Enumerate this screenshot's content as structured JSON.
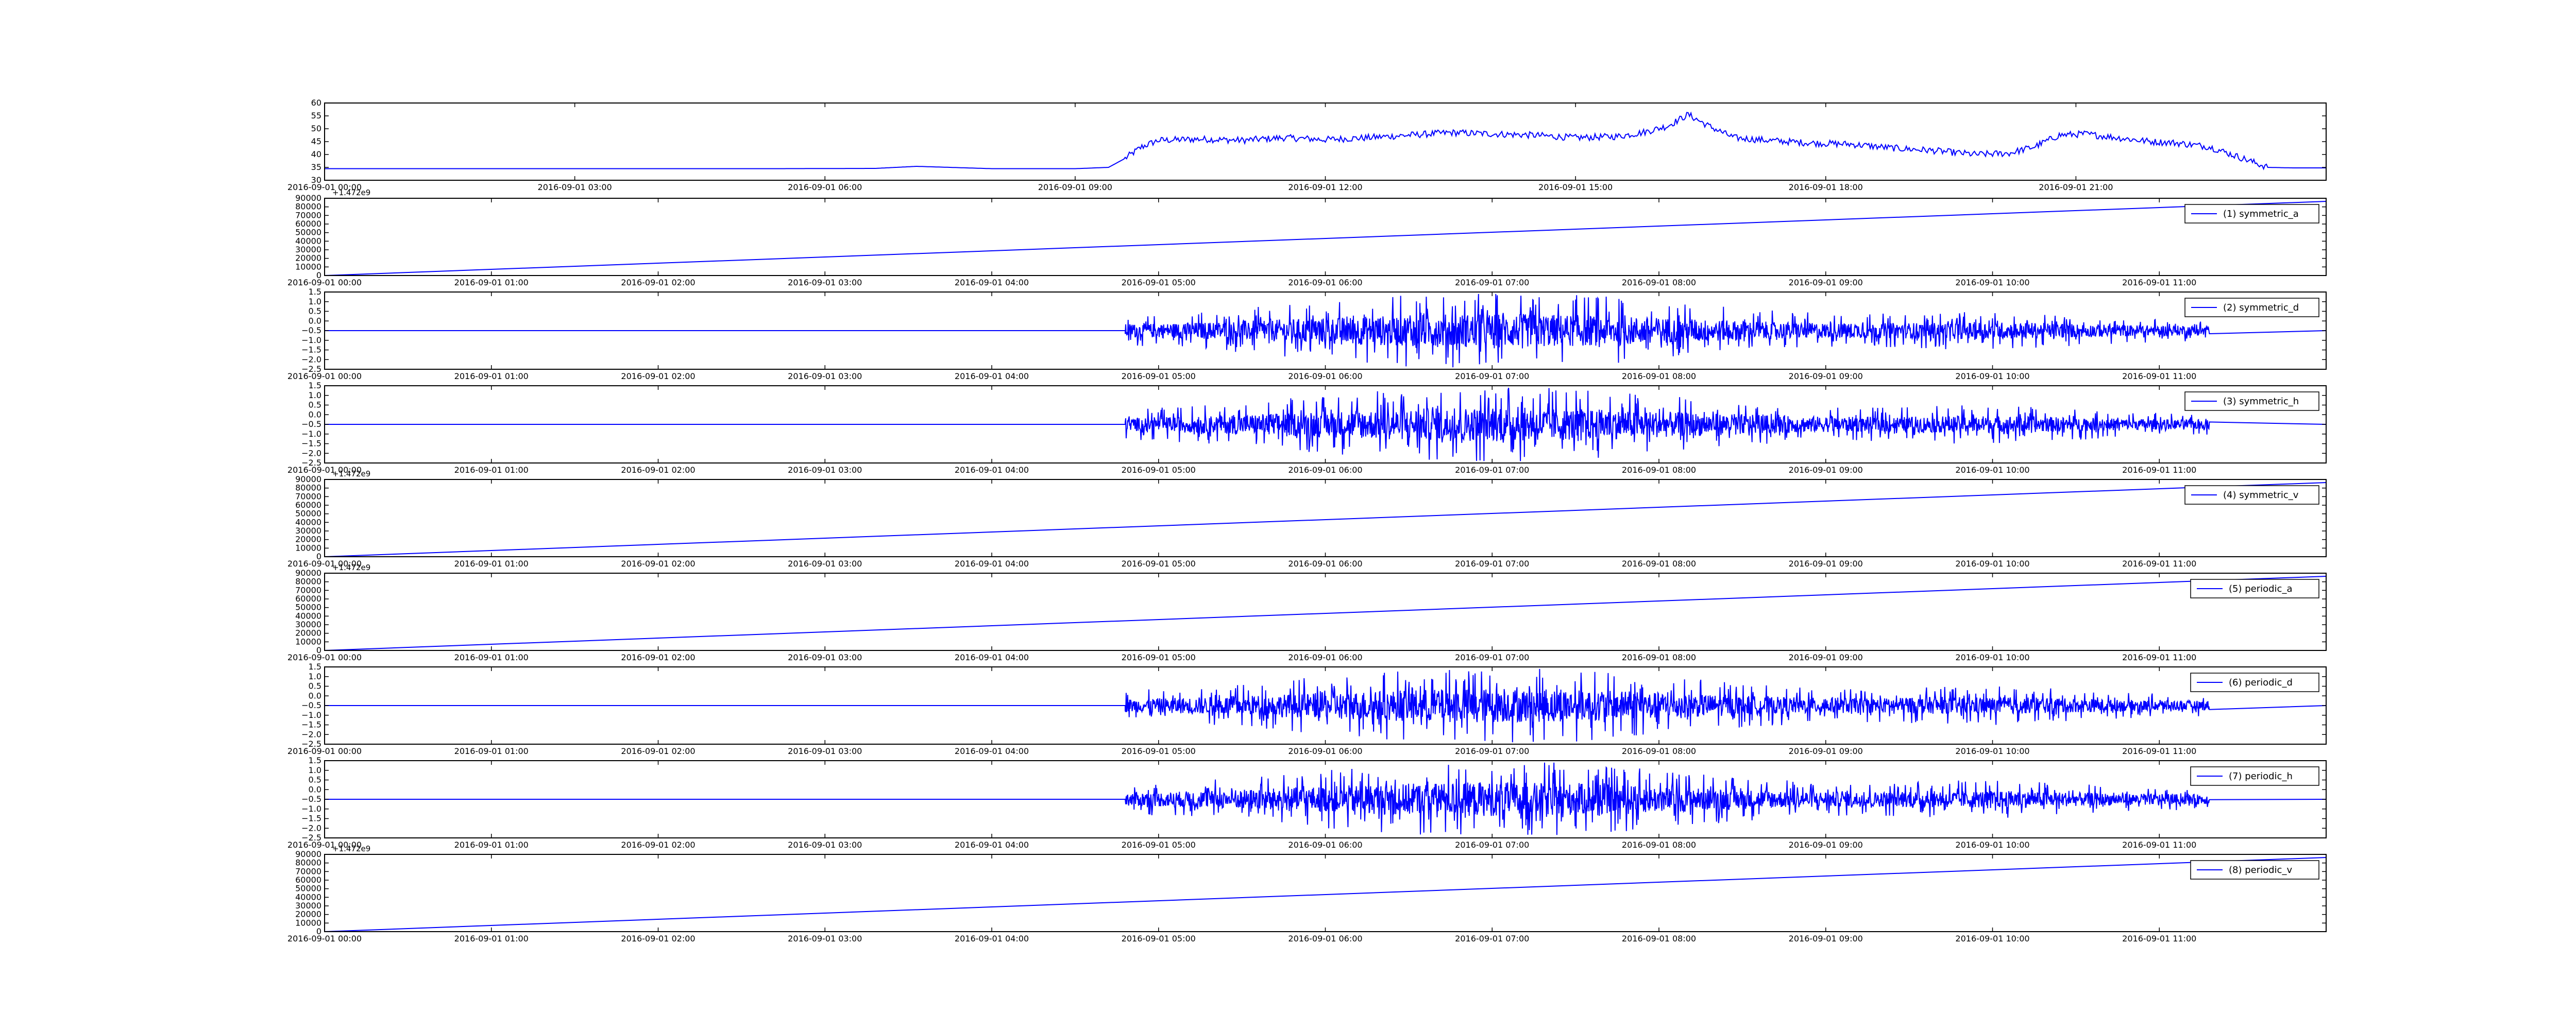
{
  "figure": {
    "line_color": "#0000ff",
    "axes_color": "#000000",
    "background": "#ffffff"
  },
  "chart_data": [
    {
      "type": "line",
      "series": [
        {
          "values": [
            [
              0.0,
              34.5
            ],
            [
              3.0,
              34.5
            ],
            [
              5.4,
              34.5
            ],
            [
              6.6,
              34.6
            ],
            [
              7.1,
              35.4
            ],
            [
              7.5,
              35.0
            ],
            [
              8.0,
              34.5
            ],
            [
              9.0,
              34.5
            ],
            [
              9.4,
              35.0
            ],
            [
              9.6,
              38.5
            ],
            [
              9.8,
              43.0
            ],
            [
              10.0,
              45.5
            ],
            [
              10.5,
              46.0
            ],
            [
              11.0,
              45.5
            ],
            [
              11.5,
              46.5
            ],
            [
              12.0,
              45.8
            ],
            [
              12.5,
              46.5
            ],
            [
              13.0,
              47.5
            ],
            [
              13.5,
              48.5
            ],
            [
              14.0,
              48.0
            ],
            [
              14.5,
              47.5
            ],
            [
              15.0,
              46.5
            ],
            [
              15.5,
              47.0
            ],
            [
              15.8,
              48.5
            ],
            [
              16.1,
              51.0
            ],
            [
              16.35,
              55.5
            ],
            [
              16.6,
              51.0
            ],
            [
              16.9,
              46.5
            ],
            [
              17.3,
              45.5
            ],
            [
              17.8,
              44.5
            ],
            [
              18.3,
              44.0
            ],
            [
              18.8,
              42.5
            ],
            [
              19.3,
              41.5
            ],
            [
              19.8,
              40.0
            ],
            [
              20.2,
              40.5
            ],
            [
              20.5,
              43.0
            ],
            [
              20.8,
              47.5
            ],
            [
              21.1,
              48.0
            ],
            [
              21.5,
              46.5
            ],
            [
              21.9,
              45.0
            ],
            [
              22.2,
              44.5
            ],
            [
              22.6,
              43.0
            ],
            [
              23.0,
              38.5
            ],
            [
              23.3,
              35.0
            ],
            [
              23.6,
              34.8
            ],
            [
              24.0,
              34.8
            ]
          ]
        }
      ],
      "x_ticks": [
        "2016-09-01 00:00",
        "2016-09-01 03:00",
        "2016-09-01 06:00",
        "2016-09-01 09:00",
        "2016-09-01 12:00",
        "2016-09-01 15:00",
        "2016-09-01 18:00",
        "2016-09-01 21:00"
      ],
      "y_ticks": [
        "30",
        "35",
        "40",
        "45",
        "50",
        "55",
        "60"
      ],
      "ylim": [
        30,
        60
      ],
      "xlim_hours": [
        0,
        24
      ]
    },
    {
      "type": "line",
      "legend_label": "(1) symmetric_a",
      "offset_label": "+1.472e9",
      "series": [
        {
          "values": [
            [
              0,
              0
            ],
            [
              12,
              86400
            ]
          ]
        }
      ],
      "x_ticks": [
        "2016-09-01 00:00",
        "2016-09-01 01:00",
        "2016-09-01 02:00",
        "2016-09-01 03:00",
        "2016-09-01 04:00",
        "2016-09-01 05:00",
        "2016-09-01 06:00",
        "2016-09-01 07:00",
        "2016-09-01 08:00",
        "2016-09-01 09:00",
        "2016-09-01 10:00",
        "2016-09-01 11:00"
      ],
      "y_ticks": [
        "0",
        "10000",
        "20000",
        "30000",
        "40000",
        "50000",
        "60000",
        "70000",
        "80000",
        "90000"
      ],
      "ylim": [
        0,
        90000
      ],
      "legend": "top-right"
    },
    {
      "type": "line",
      "legend_label": "(2) symmetric_d",
      "series": [
        {
          "baseline": -0.5,
          "active_hours": [
            4.8,
            11.3
          ]
        }
      ],
      "x_ticks": [
        "2016-09-01 00:00",
        "2016-09-01 01:00",
        "2016-09-01 02:00",
        "2016-09-01 03:00",
        "2016-09-01 04:00",
        "2016-09-01 05:00",
        "2016-09-01 06:00",
        "2016-09-01 07:00",
        "2016-09-01 08:00",
        "2016-09-01 09:00",
        "2016-09-01 10:00",
        "2016-09-01 11:00"
      ],
      "y_ticks": [
        "−2.5",
        "−2.0",
        "−1.5",
        "−1.0",
        "−0.5",
        "0.0",
        "0.5",
        "1.0",
        "1.5"
      ],
      "ylim": [
        -2.5,
        1.5
      ],
      "legend": "top-right"
    },
    {
      "type": "line",
      "legend_label": "(3) symmetric_h",
      "series": [
        {
          "baseline": -0.5,
          "active_hours": [
            4.8,
            11.3
          ]
        }
      ],
      "x_ticks": [
        "2016-09-01 00:00",
        "2016-09-01 01:00",
        "2016-09-01 02:00",
        "2016-09-01 03:00",
        "2016-09-01 04:00",
        "2016-09-01 05:00",
        "2016-09-01 06:00",
        "2016-09-01 07:00",
        "2016-09-01 08:00",
        "2016-09-01 09:00",
        "2016-09-01 10:00",
        "2016-09-01 11:00"
      ],
      "y_ticks": [
        "−2.5",
        "−2.0",
        "−1.5",
        "−1.0",
        "−0.5",
        "0.0",
        "0.5",
        "1.0",
        "1.5"
      ],
      "ylim": [
        -2.5,
        1.5
      ],
      "legend": "top-right"
    },
    {
      "type": "line",
      "legend_label": "(4) symmetric_v",
      "offset_label": "+1.472e9",
      "series": [
        {
          "values": [
            [
              0,
              0
            ],
            [
              12,
              86400
            ]
          ]
        }
      ],
      "x_ticks": [
        "2016-09-01 00:00",
        "2016-09-01 01:00",
        "2016-09-01 02:00",
        "2016-09-01 03:00",
        "2016-09-01 04:00",
        "2016-09-01 05:00",
        "2016-09-01 06:00",
        "2016-09-01 07:00",
        "2016-09-01 08:00",
        "2016-09-01 09:00",
        "2016-09-01 10:00",
        "2016-09-01 11:00"
      ],
      "y_ticks": [
        "0",
        "10000",
        "20000",
        "30000",
        "40000",
        "50000",
        "60000",
        "70000",
        "80000",
        "90000"
      ],
      "ylim": [
        0,
        90000
      ],
      "legend": "top-right"
    },
    {
      "type": "line",
      "legend_label": "(5) periodic_a",
      "offset_label": "+1.472e9",
      "series": [
        {
          "values": [
            [
              0,
              0
            ],
            [
              12,
              86400
            ]
          ]
        }
      ],
      "x_ticks": [
        "2016-09-01 00:00",
        "2016-09-01 01:00",
        "2016-09-01 02:00",
        "2016-09-01 03:00",
        "2016-09-01 04:00",
        "2016-09-01 05:00",
        "2016-09-01 06:00",
        "2016-09-01 07:00",
        "2016-09-01 08:00",
        "2016-09-01 09:00",
        "2016-09-01 10:00",
        "2016-09-01 11:00"
      ],
      "y_ticks": [
        "0",
        "10000",
        "20000",
        "30000",
        "40000",
        "50000",
        "60000",
        "70000",
        "80000",
        "90000"
      ],
      "ylim": [
        0,
        90000
      ],
      "legend": "top-right"
    },
    {
      "type": "line",
      "legend_label": "(6) periodic_d",
      "series": [
        {
          "baseline": -0.5,
          "active_hours": [
            4.8,
            11.3
          ]
        }
      ],
      "x_ticks": [
        "2016-09-01 00:00",
        "2016-09-01 01:00",
        "2016-09-01 02:00",
        "2016-09-01 03:00",
        "2016-09-01 04:00",
        "2016-09-01 05:00",
        "2016-09-01 06:00",
        "2016-09-01 07:00",
        "2016-09-01 08:00",
        "2016-09-01 09:00",
        "2016-09-01 10:00",
        "2016-09-01 11:00"
      ],
      "y_ticks": [
        "−2.5",
        "−2.0",
        "−1.5",
        "−1.0",
        "−0.5",
        "0.0",
        "0.5",
        "1.0",
        "1.5"
      ],
      "ylim": [
        -2.5,
        1.5
      ],
      "legend": "top-right"
    },
    {
      "type": "line",
      "legend_label": "(7) periodic_h",
      "series": [
        {
          "baseline": -0.5,
          "active_hours": [
            4.8,
            11.3
          ]
        }
      ],
      "x_ticks": [
        "2016-09-01 00:00",
        "2016-09-01 01:00",
        "2016-09-01 02:00",
        "2016-09-01 03:00",
        "2016-09-01 04:00",
        "2016-09-01 05:00",
        "2016-09-01 06:00",
        "2016-09-01 07:00",
        "2016-09-01 08:00",
        "2016-09-01 09:00",
        "2016-09-01 10:00",
        "2016-09-01 11:00"
      ],
      "y_ticks": [
        "−2.5",
        "−2.0",
        "−1.5",
        "−1.0",
        "−0.5",
        "0.0",
        "0.5",
        "1.0",
        "1.5"
      ],
      "ylim": [
        -2.5,
        1.5
      ],
      "legend": "top-right"
    },
    {
      "type": "line",
      "legend_label": "(8) periodic_v",
      "offset_label": "+1.472e9",
      "series": [
        {
          "values": [
            [
              0,
              0
            ],
            [
              12,
              86400
            ]
          ]
        }
      ],
      "x_ticks": [
        "2016-09-01 00:00",
        "2016-09-01 01:00",
        "2016-09-01 02:00",
        "2016-09-01 03:00",
        "2016-09-01 04:00",
        "2016-09-01 05:00",
        "2016-09-01 06:00",
        "2016-09-01 07:00",
        "2016-09-01 08:00",
        "2016-09-01 09:00",
        "2016-09-01 10:00",
        "2016-09-01 11:00"
      ],
      "y_ticks": [
        "0",
        "10000",
        "20000",
        "30000",
        "40000",
        "50000",
        "60000",
        "70000",
        "80000",
        "90000"
      ],
      "ylim": [
        0,
        90000
      ],
      "legend": "top-right"
    }
  ]
}
